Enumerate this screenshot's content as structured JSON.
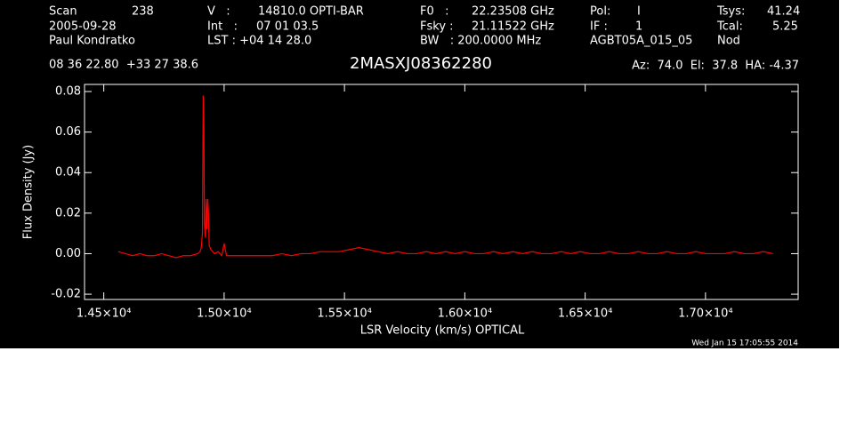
{
  "chart_data": {
    "type": "line",
    "header_rows": [
      [
        "Scan",
        "238",
        "V   :",
        "14810.0 OPTI-BAR",
        "F0   :",
        "22.23508 GHz",
        "Pol:",
        "I",
        "Tsys:",
        "41.24"
      ],
      [
        "2005-09-28",
        "Int   :",
        "07 01 03.5",
        "Fsky :",
        "21.11522 GHz",
        "IF :",
        "1",
        "Tcal:",
        "5.25"
      ],
      [
        "Paul Kondratko",
        "LST : +04 14 28.0",
        "BW   : 200.0000 MHz",
        "AGBT05A_015_05",
        "Nod"
      ]
    ],
    "coordinates": "08 36 22.80  +33 27 38.6",
    "title": "2MASXJ08362280",
    "pointing": "Az:  74.0  El:  37.8  HA: -4.37",
    "x_label": "LSR Velocity (km/s) OPTICAL",
    "y_label": "Flux Density (Jy)",
    "timestamp": "Wed Jan 15 17:05:55 2014",
    "xlim": [
      14420,
      17385
    ],
    "ylim": [
      -0.0226,
      0.0835
    ],
    "xticks": [
      {
        "value": 14500,
        "label": "1.45×10⁴"
      },
      {
        "value": 15000,
        "label": "1.50×10⁴"
      },
      {
        "value": 15500,
        "label": "1.55×10⁴"
      },
      {
        "value": 16000,
        "label": "1.60×10⁴"
      },
      {
        "value": 16500,
        "label": "1.65×10⁴"
      },
      {
        "value": 17000,
        "label": "1.70×10⁴"
      }
    ],
    "yticks": [
      -0.02,
      {
        "value": 0,
        "label": "0.00"
      },
      0.02,
      0.04,
      0.06,
      0.08
    ],
    "x": [
      14560,
      14590,
      14620,
      14650,
      14680,
      14710,
      14740,
      14770,
      14800,
      14830,
      14860,
      14890,
      14900,
      14905,
      14910,
      14913,
      14916,
      14918,
      14922,
      14925,
      14928,
      14932,
      14935,
      14938,
      14945,
      14960,
      14975,
      14990,
      15000,
      15010,
      15040,
      15080,
      15120,
      15160,
      15200,
      15240,
      15280,
      15320,
      15360,
      15400,
      15440,
      15480,
      15520,
      15560,
      15600,
      15640,
      15680,
      15720,
      15760,
      15800,
      15840,
      15880,
      15920,
      15960,
      16000,
      16040,
      16080,
      16120,
      16160,
      16200,
      16240,
      16280,
      16320,
      16360,
      16400,
      16440,
      16480,
      16520,
      16560,
      16600,
      16640,
      16680,
      16720,
      16760,
      16800,
      16840,
      16880,
      16920,
      16960,
      17000,
      17040,
      17080,
      17120,
      17160,
      17200,
      17240,
      17280
    ],
    "series": [
      {
        "color": "#ff0000",
        "values": [
          0.001,
          0,
          -0.001,
          0,
          -0.001,
          -0.001,
          0,
          -0.001,
          -0.002,
          -0.001,
          -0.001,
          0,
          0.001,
          0.003,
          0.01,
          0.078,
          0.062,
          0.015,
          0.008,
          0.027,
          0.012,
          0.027,
          0.02,
          0.004,
          0.002,
          0,
          0.001,
          -0.001,
          0.005,
          -0.001,
          -0.001,
          -0.001,
          -0.001,
          -0.001,
          -0.001,
          0,
          -0.001,
          0,
          0,
          0.001,
          0.001,
          0.001,
          0.002,
          0.003,
          0.002,
          0.001,
          0,
          0.001,
          0,
          0,
          0.001,
          0,
          0.001,
          0,
          0.001,
          0,
          0,
          0.001,
          0,
          0.001,
          0,
          0.001,
          0,
          0,
          0.001,
          0,
          0.001,
          0,
          0,
          0.001,
          0,
          0,
          0.001,
          0,
          0,
          0.001,
          0,
          0,
          0.001,
          0,
          0,
          0,
          0.001,
          0,
          0,
          0.001,
          0
        ]
      }
    ]
  }
}
